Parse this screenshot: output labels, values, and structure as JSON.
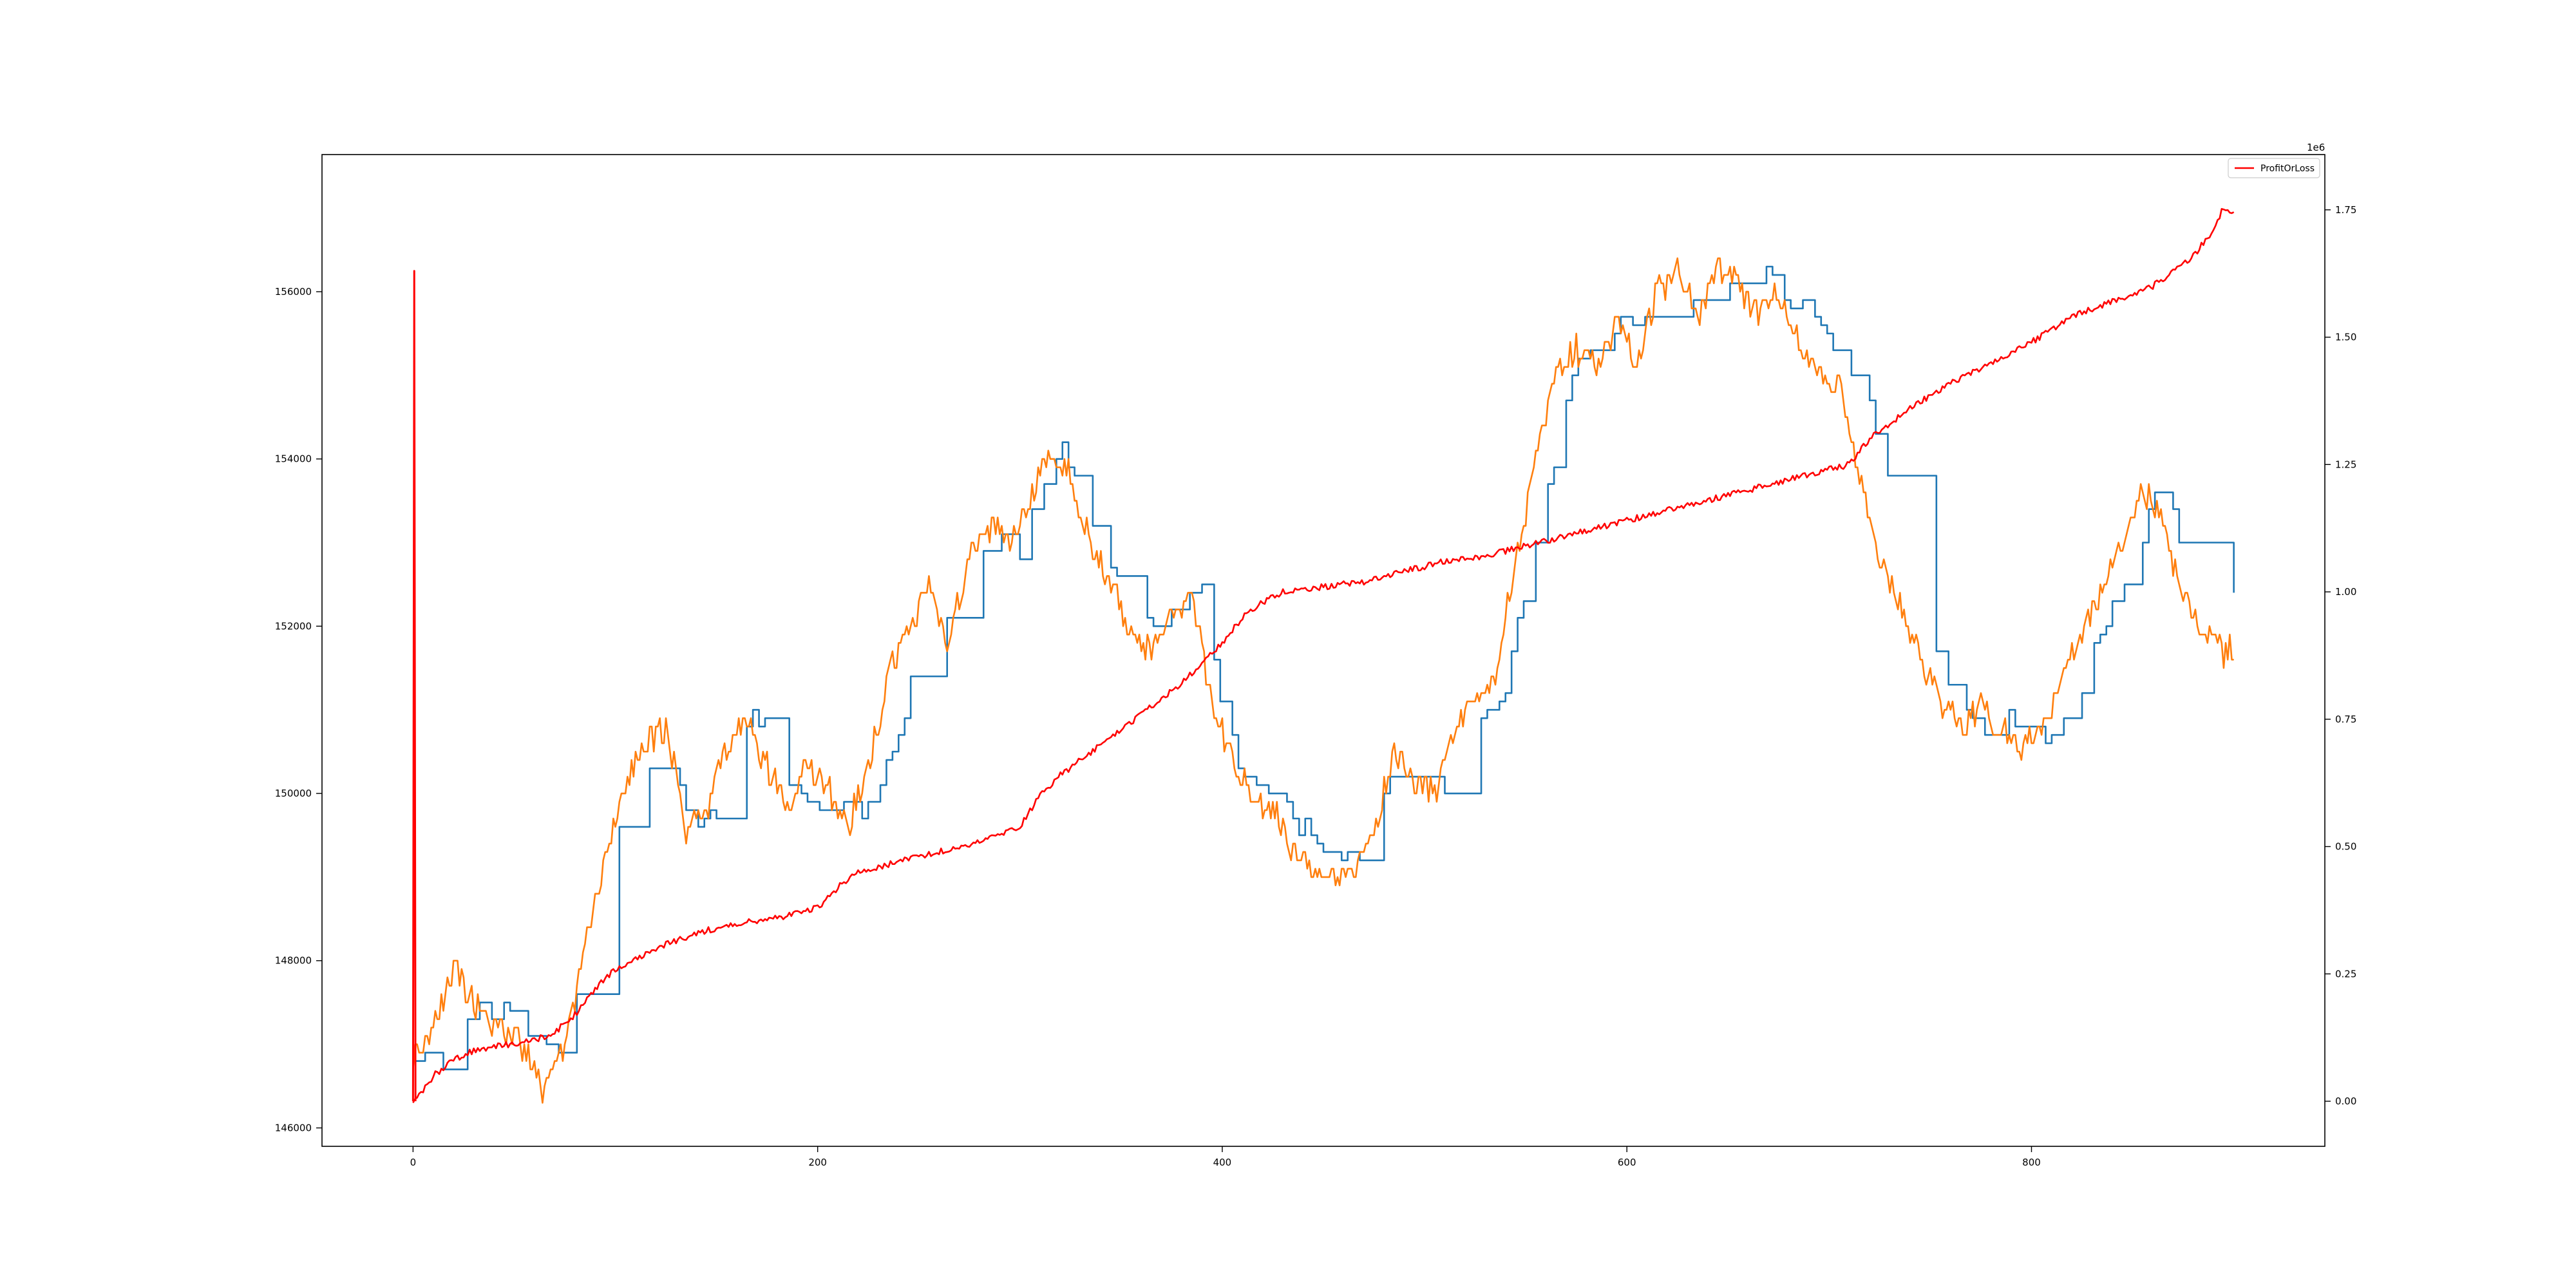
{
  "chart_data": {
    "type": "line",
    "x_range": [
      0,
      900
    ],
    "xlim": [
      -45,
      945
    ],
    "xticks": [
      0,
      200,
      400,
      600,
      800
    ],
    "left_axis": {
      "ylim": [
        145780,
        157640
      ],
      "ticks": [
        146000,
        148000,
        150000,
        152000,
        154000,
        156000
      ]
    },
    "right_axis": {
      "ylim": [
        -0.0885,
        1.8585
      ],
      "ticks": [
        0.0,
        0.25,
        0.5,
        0.75,
        1.0,
        1.25,
        1.5,
        1.75
      ],
      "tick_labels": [
        "0.00",
        "0.25",
        "0.50",
        "0.75",
        "1.00",
        "1.25",
        "1.50",
        "1.75"
      ],
      "offset_label": "1e6"
    },
    "grid": false,
    "legend": {
      "location": "upper right",
      "entries": [
        "ProfitOrLoss"
      ]
    },
    "series": [
      {
        "color": "#1f77b4",
        "axis": "left",
        "drawstyle": "steps-post",
        "keypoints": [
          [
            0,
            146900
          ],
          [
            5,
            147000
          ],
          [
            15,
            146800
          ],
          [
            25,
            147200
          ],
          [
            35,
            147500
          ],
          [
            50,
            147300
          ],
          [
            60,
            147100
          ],
          [
            70,
            146700
          ],
          [
            80,
            147600
          ],
          [
            90,
            148800
          ],
          [
            100,
            149500
          ],
          [
            110,
            150000
          ],
          [
            120,
            150400
          ],
          [
            130,
            150200
          ],
          [
            140,
            149600
          ],
          [
            150,
            149800
          ],
          [
            160,
            150600
          ],
          [
            170,
            151000
          ],
          [
            180,
            150500
          ],
          [
            190,
            150000
          ],
          [
            200,
            149900
          ],
          [
            210,
            150000
          ],
          [
            220,
            149600
          ],
          [
            230,
            150100
          ],
          [
            240,
            150800
          ],
          [
            250,
            151600
          ],
          [
            260,
            152200
          ],
          [
            270,
            151900
          ],
          [
            280,
            153000
          ],
          [
            290,
            153200
          ],
          [
            300,
            152800
          ],
          [
            310,
            153700
          ],
          [
            320,
            154100
          ],
          [
            330,
            153600
          ],
          [
            340,
            153000
          ],
          [
            350,
            152400
          ],
          [
            360,
            152000
          ],
          [
            370,
            152100
          ],
          [
            380,
            152300
          ],
          [
            390,
            152500
          ],
          [
            400,
            150900
          ],
          [
            410,
            150200
          ],
          [
            420,
            150000
          ],
          [
            430,
            149800
          ],
          [
            440,
            149600
          ],
          [
            450,
            149300
          ],
          [
            460,
            149200
          ],
          [
            470,
            149300
          ],
          [
            480,
            149900
          ],
          [
            490,
            150700
          ],
          [
            500,
            150300
          ],
          [
            510,
            150100
          ],
          [
            520,
            150700
          ],
          [
            530,
            151000
          ],
          [
            540,
            151300
          ],
          [
            550,
            152500
          ],
          [
            560,
            153500
          ],
          [
            570,
            154700
          ],
          [
            580,
            155400
          ],
          [
            590,
            155500
          ],
          [
            600,
            155700
          ],
          [
            610,
            155600
          ],
          [
            620,
            155800
          ],
          [
            630,
            155900
          ],
          [
            640,
            156100
          ],
          [
            650,
            156200
          ],
          [
            660,
            155800
          ],
          [
            670,
            156300
          ],
          [
            680,
            155900
          ],
          [
            690,
            155700
          ],
          [
            700,
            155500
          ],
          [
            710,
            155000
          ],
          [
            720,
            154600
          ],
          [
            730,
            153600
          ],
          [
            740,
            152500
          ],
          [
            750,
            151800
          ],
          [
            760,
            151200
          ],
          [
            770,
            150900
          ],
          [
            780,
            150800
          ],
          [
            790,
            150900
          ],
          [
            800,
            150700
          ],
          [
            810,
            150600
          ],
          [
            820,
            151000
          ],
          [
            830,
            151600
          ],
          [
            840,
            152200
          ],
          [
            850,
            152600
          ],
          [
            860,
            153500
          ],
          [
            870,
            153300
          ],
          [
            880,
            152500
          ],
          [
            890,
            152000
          ],
          [
            900,
            152400
          ]
        ]
      },
      {
        "color": "#ff7f0e",
        "axis": "left",
        "drawstyle": "default",
        "keypoints": [
          [
            0,
            146800
          ],
          [
            10,
            147200
          ],
          [
            20,
            147900
          ],
          [
            30,
            147500
          ],
          [
            40,
            147200
          ],
          [
            50,
            147100
          ],
          [
            60,
            146800
          ],
          [
            65,
            146400
          ],
          [
            75,
            147000
          ],
          [
            85,
            148200
          ],
          [
            95,
            149200
          ],
          [
            105,
            150100
          ],
          [
            115,
            150600
          ],
          [
            125,
            150800
          ],
          [
            135,
            149600
          ],
          [
            145,
            149800
          ],
          [
            155,
            150600
          ],
          [
            165,
            150900
          ],
          [
            175,
            150300
          ],
          [
            185,
            149900
          ],
          [
            195,
            150300
          ],
          [
            205,
            150100
          ],
          [
            215,
            149600
          ],
          [
            225,
            150300
          ],
          [
            235,
            151400
          ],
          [
            245,
            152000
          ],
          [
            255,
            152400
          ],
          [
            265,
            151800
          ],
          [
            275,
            152900
          ],
          [
            285,
            153200
          ],
          [
            295,
            153000
          ],
          [
            305,
            153600
          ],
          [
            315,
            154100
          ],
          [
            325,
            153800
          ],
          [
            335,
            153000
          ],
          [
            345,
            152500
          ],
          [
            355,
            151900
          ],
          [
            365,
            151700
          ],
          [
            375,
            152200
          ],
          [
            385,
            152300
          ],
          [
            395,
            151100
          ],
          [
            405,
            150400
          ],
          [
            415,
            149900
          ],
          [
            425,
            149800
          ],
          [
            435,
            149300
          ],
          [
            445,
            149100
          ],
          [
            455,
            149000
          ],
          [
            465,
            149000
          ],
          [
            475,
            149500
          ],
          [
            485,
            150500
          ],
          [
            495,
            150200
          ],
          [
            505,
            150000
          ],
          [
            515,
            150800
          ],
          [
            525,
            151100
          ],
          [
            535,
            151400
          ],
          [
            545,
            152800
          ],
          [
            555,
            154000
          ],
          [
            565,
            155000
          ],
          [
            575,
            155300
          ],
          [
            585,
            155100
          ],
          [
            595,
            155600
          ],
          [
            605,
            155200
          ],
          [
            615,
            156000
          ],
          [
            625,
            156200
          ],
          [
            635,
            155700
          ],
          [
            645,
            156300
          ],
          [
            655,
            156100
          ],
          [
            665,
            155700
          ],
          [
            675,
            156000
          ],
          [
            685,
            155400
          ],
          [
            695,
            155000
          ],
          [
            705,
            154900
          ],
          [
            715,
            153800
          ],
          [
            725,
            152800
          ],
          [
            735,
            152300
          ],
          [
            745,
            151600
          ],
          [
            755,
            151100
          ],
          [
            765,
            150800
          ],
          [
            775,
            151000
          ],
          [
            785,
            150800
          ],
          [
            795,
            150500
          ],
          [
            805,
            150800
          ],
          [
            815,
            151300
          ],
          [
            825,
            151900
          ],
          [
            835,
            152400
          ],
          [
            845,
            153000
          ],
          [
            855,
            153700
          ],
          [
            865,
            153200
          ],
          [
            875,
            152400
          ],
          [
            885,
            151900
          ],
          [
            895,
            151700
          ],
          [
            900,
            151800
          ]
        ]
      },
      {
        "name": "ProfitOrLoss",
        "color": "#ff0000",
        "axis": "right",
        "drawstyle": "default",
        "keypoints": [
          [
            0,
            0.0
          ],
          [
            5,
            0.02
          ],
          [
            10,
            0.05
          ],
          [
            20,
            0.08
          ],
          [
            30,
            0.1
          ],
          [
            45,
            0.11
          ],
          [
            60,
            0.12
          ],
          [
            70,
            0.135
          ],
          [
            80,
            0.17
          ],
          [
            90,
            0.22
          ],
          [
            100,
            0.26
          ],
          [
            120,
            0.3
          ],
          [
            140,
            0.33
          ],
          [
            160,
            0.35
          ],
          [
            180,
            0.36
          ],
          [
            200,
            0.38
          ],
          [
            210,
            0.42
          ],
          [
            220,
            0.45
          ],
          [
            240,
            0.47
          ],
          [
            260,
            0.49
          ],
          [
            280,
            0.51
          ],
          [
            300,
            0.54
          ],
          [
            310,
            0.6
          ],
          [
            320,
            0.64
          ],
          [
            340,
            0.7
          ],
          [
            360,
            0.76
          ],
          [
            380,
            0.82
          ],
          [
            390,
            0.86
          ],
          [
            400,
            0.9
          ],
          [
            410,
            0.95
          ],
          [
            420,
            0.98
          ],
          [
            430,
            1.0
          ],
          [
            450,
            1.01
          ],
          [
            470,
            1.02
          ],
          [
            490,
            1.04
          ],
          [
            510,
            1.06
          ],
          [
            530,
            1.07
          ],
          [
            550,
            1.09
          ],
          [
            570,
            1.11
          ],
          [
            590,
            1.13
          ],
          [
            610,
            1.15
          ],
          [
            630,
            1.17
          ],
          [
            650,
            1.19
          ],
          [
            670,
            1.21
          ],
          [
            690,
            1.23
          ],
          [
            710,
            1.25
          ],
          [
            720,
            1.3
          ],
          [
            740,
            1.36
          ],
          [
            760,
            1.41
          ],
          [
            780,
            1.45
          ],
          [
            800,
            1.49
          ],
          [
            820,
            1.54
          ],
          [
            840,
            1.57
          ],
          [
            860,
            1.6
          ],
          [
            880,
            1.66
          ],
          [
            890,
            1.71
          ],
          [
            895,
            1.755
          ],
          [
            900,
            1.745
          ]
        ]
      },
      {
        "color": "#ff0000",
        "axis": "right",
        "drawstyle": "default",
        "keypoints": [
          [
            0,
            0.0
          ],
          [
            0.6,
            1.63
          ],
          [
            1.2,
            0.0
          ]
        ]
      }
    ]
  }
}
